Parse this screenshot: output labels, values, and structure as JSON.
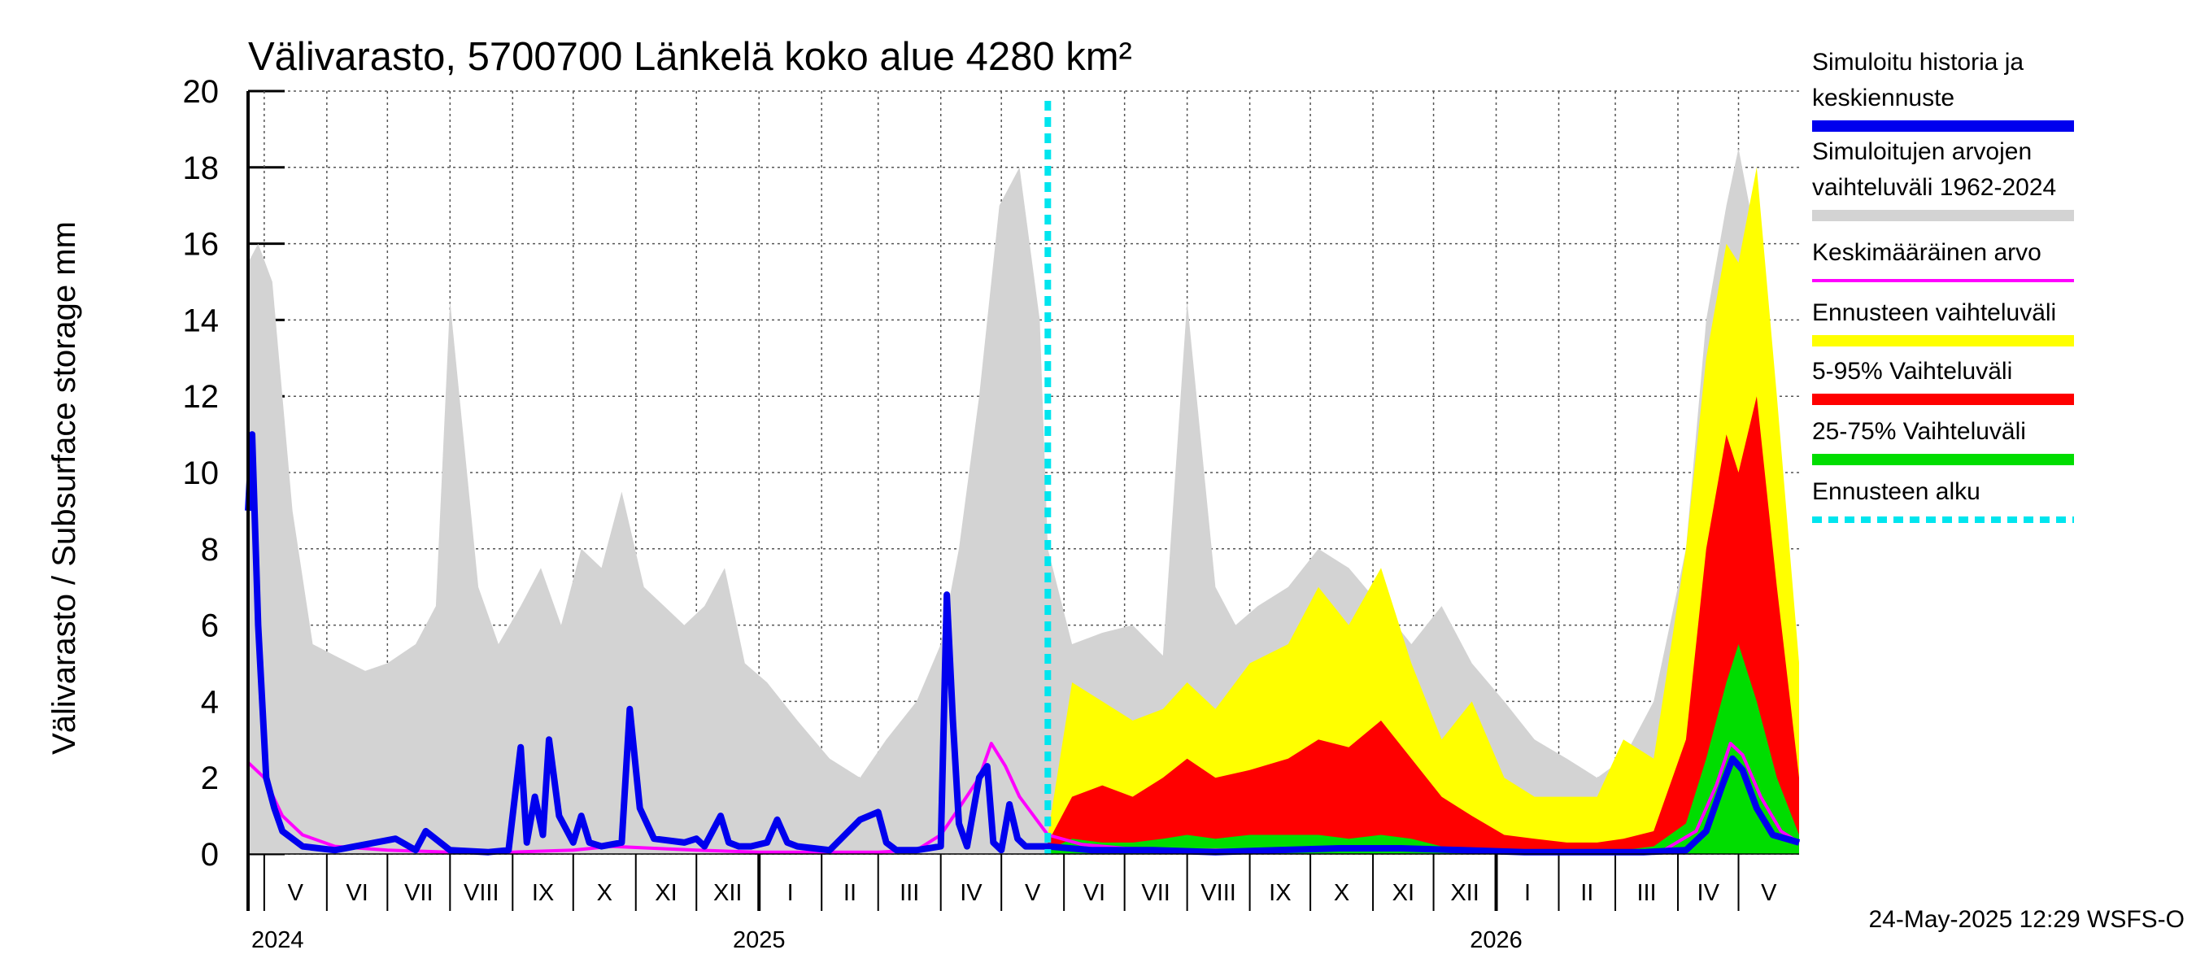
{
  "chart_data": {
    "type": "area",
    "title": "Välivarasto, 5700700 Länkelä koko alue 4280 km²",
    "ylabel": "Välivarasto / Subsurface storage  mm",
    "ylim": [
      0,
      20
    ],
    "yticks": [
      "0",
      "2",
      "4",
      "6",
      "8",
      "10",
      "12",
      "14",
      "16",
      "18",
      "20"
    ],
    "grid": true,
    "x_range": [
      "2024-04-23",
      "2026-05-31"
    ],
    "forecast_start": "2025-05-24",
    "months": [
      {
        "label": "V",
        "start": "2024-05-01"
      },
      {
        "label": "VI",
        "start": "2024-06-01"
      },
      {
        "label": "VII",
        "start": "2024-07-01"
      },
      {
        "label": "VIII",
        "start": "2024-08-01"
      },
      {
        "label": "IX",
        "start": "2024-09-01"
      },
      {
        "label": "X",
        "start": "2024-10-01"
      },
      {
        "label": "XI",
        "start": "2024-11-01"
      },
      {
        "label": "XII",
        "start": "2024-12-01"
      },
      {
        "label": "I",
        "start": "2025-01-01"
      },
      {
        "label": "II",
        "start": "2025-02-01"
      },
      {
        "label": "III",
        "start": "2025-03-01"
      },
      {
        "label": "IV",
        "start": "2025-04-01"
      },
      {
        "label": "V",
        "start": "2025-05-01"
      },
      {
        "label": "VI",
        "start": "2025-06-01"
      },
      {
        "label": "VII",
        "start": "2025-07-01"
      },
      {
        "label": "VIII",
        "start": "2025-08-01"
      },
      {
        "label": "IX",
        "start": "2025-09-01"
      },
      {
        "label": "X",
        "start": "2025-10-01"
      },
      {
        "label": "XI",
        "start": "2025-11-01"
      },
      {
        "label": "XII",
        "start": "2025-12-01"
      },
      {
        "label": "I",
        "start": "2026-01-01"
      },
      {
        "label": "II",
        "start": "2026-02-01"
      },
      {
        "label": "III",
        "start": "2026-03-01"
      },
      {
        "label": "IV",
        "start": "2026-04-01"
      },
      {
        "label": "V",
        "start": "2026-05-01"
      }
    ],
    "years": [
      {
        "label": "2024",
        "date": "2024-04-23"
      },
      {
        "label": "2025",
        "date": "2025-01-01"
      },
      {
        "label": "2026",
        "date": "2026-01-01"
      }
    ],
    "series": [
      {
        "name": "Simuloitujen arvojen vaihteluväli 1962-2024",
        "color": "#d3d3d3",
        "kind": "band",
        "x": [
          "2024-04-23",
          "2024-04-28",
          "2024-05-05",
          "2024-05-15",
          "2024-05-25",
          "2024-06-05",
          "2024-06-20",
          "2024-07-01",
          "2024-07-15",
          "2024-07-25",
          "2024-08-01",
          "2024-08-15",
          "2024-08-25",
          "2024-09-05",
          "2024-09-15",
          "2024-09-25",
          "2024-10-05",
          "2024-10-15",
          "2024-10-25",
          "2024-11-05",
          "2024-11-15",
          "2024-11-25",
          "2024-12-05",
          "2024-12-15",
          "2024-12-25",
          "2025-01-05",
          "2025-01-20",
          "2025-02-05",
          "2025-02-20",
          "2025-03-05",
          "2025-03-20",
          "2025-04-01",
          "2025-04-10",
          "2025-04-20",
          "2025-04-30",
          "2025-05-10",
          "2025-05-20",
          "2025-05-24",
          "2025-06-05",
          "2025-06-20",
          "2025-07-05",
          "2025-07-20",
          "2025-08-01",
          "2025-08-15",
          "2025-08-25",
          "2025-09-05",
          "2025-09-20",
          "2025-10-05",
          "2025-10-20",
          "2025-11-05",
          "2025-11-20",
          "2025-12-05",
          "2025-12-20",
          "2026-01-05",
          "2026-01-20",
          "2026-02-05",
          "2026-02-20",
          "2026-03-05",
          "2026-03-20",
          "2026-04-05",
          "2026-04-15",
          "2026-04-25",
          "2026-05-01",
          "2026-05-10",
          "2026-05-20",
          "2026-05-31"
        ],
        "values": [
          15.5,
          16.0,
          15.0,
          9.0,
          5.5,
          5.2,
          4.8,
          5.0,
          5.5,
          6.5,
          14.5,
          7.0,
          5.5,
          6.5,
          7.5,
          6.0,
          8.0,
          7.5,
          9.5,
          7.0,
          6.5,
          6.0,
          6.5,
          7.5,
          5.0,
          4.5,
          3.5,
          2.5,
          2.0,
          3.0,
          4.0,
          5.5,
          8.0,
          12.0,
          17.0,
          18.0,
          14.0,
          8.0,
          5.5,
          5.8,
          6.0,
          5.2,
          14.5,
          7.0,
          6.0,
          6.5,
          7.0,
          8.0,
          7.5,
          6.5,
          5.5,
          6.5,
          5.0,
          4.0,
          3.0,
          2.5,
          2.0,
          2.5,
          4.0,
          8.0,
          14.0,
          17.0,
          18.5,
          16.0,
          10.0,
          5.0
        ]
      },
      {
        "name": "Ennusteen vaihteluväli",
        "color": "#ffff00",
        "kind": "band",
        "x": [
          "2025-05-24",
          "2025-06-05",
          "2025-06-20",
          "2025-07-05",
          "2025-07-20",
          "2025-08-01",
          "2025-08-15",
          "2025-09-01",
          "2025-09-20",
          "2025-10-05",
          "2025-10-20",
          "2025-11-05",
          "2025-11-20",
          "2025-12-05",
          "2025-12-20",
          "2026-01-05",
          "2026-01-20",
          "2026-02-05",
          "2026-02-20",
          "2026-03-05",
          "2026-03-20",
          "2026-04-05",
          "2026-04-15",
          "2026-04-25",
          "2026-05-01",
          "2026-05-10",
          "2026-05-20",
          "2026-05-31"
        ],
        "values": [
          0.5,
          4.5,
          4.0,
          3.5,
          3.8,
          4.5,
          3.8,
          5.0,
          5.5,
          7.0,
          6.0,
          7.5,
          5.0,
          3.0,
          4.0,
          2.0,
          1.5,
          1.5,
          1.5,
          3.0,
          2.5,
          8.0,
          13.0,
          16.0,
          15.5,
          18.0,
          12.0,
          5.0
        ]
      },
      {
        "name": "5-95% Vaihteluväli",
        "color": "#ff0000",
        "kind": "band",
        "x": [
          "2025-05-24",
          "2025-06-05",
          "2025-06-20",
          "2025-07-05",
          "2025-07-20",
          "2025-08-01",
          "2025-08-15",
          "2025-09-01",
          "2025-09-20",
          "2025-10-05",
          "2025-10-20",
          "2025-11-05",
          "2025-11-20",
          "2025-12-05",
          "2025-12-20",
          "2026-01-05",
          "2026-01-20",
          "2026-02-05",
          "2026-02-20",
          "2026-03-05",
          "2026-03-20",
          "2026-04-05",
          "2026-04-15",
          "2026-04-25",
          "2026-05-01",
          "2026-05-10",
          "2026-05-20",
          "2026-05-31"
        ],
        "values": [
          0.3,
          1.5,
          1.8,
          1.5,
          2.0,
          2.5,
          2.0,
          2.2,
          2.5,
          3.0,
          2.8,
          3.5,
          2.5,
          1.5,
          1.0,
          0.5,
          0.4,
          0.3,
          0.3,
          0.4,
          0.6,
          3.0,
          8.0,
          11.0,
          10.0,
          12.0,
          7.0,
          2.0
        ]
      },
      {
        "name": "25-75% Vaihteluväli",
        "color": "#00dd00",
        "kind": "band",
        "x": [
          "2025-05-24",
          "2025-06-05",
          "2025-06-20",
          "2025-07-05",
          "2025-07-20",
          "2025-08-01",
          "2025-08-15",
          "2025-09-01",
          "2025-09-20",
          "2025-10-05",
          "2025-10-20",
          "2025-11-05",
          "2025-11-20",
          "2025-12-05",
          "2025-12-20",
          "2026-01-05",
          "2026-01-20",
          "2026-02-05",
          "2026-02-20",
          "2026-03-05",
          "2026-03-20",
          "2026-04-05",
          "2026-04-15",
          "2026-04-25",
          "2026-05-01",
          "2026-05-10",
          "2026-05-20",
          "2026-05-31"
        ],
        "values": [
          0.1,
          0.4,
          0.3,
          0.3,
          0.4,
          0.5,
          0.4,
          0.5,
          0.5,
          0.5,
          0.4,
          0.5,
          0.4,
          0.2,
          0.1,
          0.1,
          0.05,
          0.05,
          0.05,
          0.1,
          0.2,
          0.8,
          2.5,
          4.5,
          5.5,
          4.0,
          2.0,
          0.5
        ]
      },
      {
        "name": "Keskimääräinen arvo",
        "color": "#ff00ff",
        "kind": "line",
        "x": [
          "2024-04-23",
          "2024-05-01",
          "2024-05-10",
          "2024-05-20",
          "2024-06-05",
          "2024-07-01",
          "2024-08-01",
          "2024-09-01",
          "2024-10-01",
          "2024-10-20",
          "2024-11-10",
          "2024-12-01",
          "2025-01-01",
          "2025-02-01",
          "2025-03-01",
          "2025-03-20",
          "2025-04-01",
          "2025-04-10",
          "2025-04-20",
          "2025-04-26",
          "2025-05-03",
          "2025-05-10",
          "2025-05-24",
          "2025-06-10",
          "2025-07-01",
          "2025-08-01",
          "2025-09-01",
          "2025-10-01",
          "2025-11-01",
          "2025-12-01",
          "2026-01-01",
          "2026-02-01",
          "2026-03-01",
          "2026-03-25",
          "2026-04-10",
          "2026-04-20",
          "2026-04-27",
          "2026-05-03",
          "2026-05-12",
          "2026-05-22",
          "2026-05-31"
        ],
        "values": [
          2.4,
          2.0,
          1.0,
          0.5,
          0.2,
          0.1,
          0.05,
          0.05,
          0.1,
          0.2,
          0.15,
          0.1,
          0.05,
          0.05,
          0.05,
          0.1,
          0.5,
          1.2,
          2.0,
          2.9,
          2.3,
          1.5,
          0.5,
          0.25,
          0.15,
          0.1,
          0.1,
          0.15,
          0.15,
          0.1,
          0.05,
          0.05,
          0.05,
          0.1,
          0.6,
          1.8,
          2.9,
          2.6,
          1.5,
          0.6,
          0.3
        ]
      },
      {
        "name": "Simuloitu historia ja keskiennuste",
        "color": "#0000ee",
        "kind": "line",
        "x": [
          "2024-04-23",
          "2024-04-25",
          "2024-04-28",
          "2024-05-02",
          "2024-05-06",
          "2024-05-10",
          "2024-05-20",
          "2024-06-05",
          "2024-06-25",
          "2024-07-05",
          "2024-07-15",
          "2024-07-20",
          "2024-08-01",
          "2024-08-20",
          "2024-08-30",
          "2024-09-05",
          "2024-09-08",
          "2024-09-12",
          "2024-09-16",
          "2024-09-19",
          "2024-09-24",
          "2024-10-01",
          "2024-10-05",
          "2024-10-09",
          "2024-10-15",
          "2024-10-25",
          "2024-10-29",
          "2024-11-03",
          "2024-11-10",
          "2024-11-25",
          "2024-12-01",
          "2024-12-05",
          "2024-12-09",
          "2024-12-13",
          "2024-12-17",
          "2024-12-22",
          "2024-12-28",
          "2025-01-05",
          "2025-01-10",
          "2025-01-15",
          "2025-01-20",
          "2025-02-05",
          "2025-02-20",
          "2025-03-01",
          "2025-03-05",
          "2025-03-10",
          "2025-03-20",
          "2025-04-01",
          "2025-04-04",
          "2025-04-07",
          "2025-04-10",
          "2025-04-14",
          "2025-04-20",
          "2025-04-24",
          "2025-04-27",
          "2025-05-01",
          "2025-05-05",
          "2025-05-09",
          "2025-05-13",
          "2025-05-17",
          "2025-05-24",
          "2025-06-15",
          "2025-07-15",
          "2025-08-15",
          "2025-09-15",
          "2025-10-15",
          "2025-11-15",
          "2025-12-15",
          "2026-01-15",
          "2026-02-15",
          "2026-03-15",
          "2026-04-05",
          "2026-04-15",
          "2026-04-23",
          "2026-04-28",
          "2026-05-03",
          "2026-05-10",
          "2026-05-18",
          "2026-05-31"
        ],
        "values": [
          9.0,
          11.0,
          6.0,
          2.0,
          1.2,
          0.6,
          0.2,
          0.1,
          0.3,
          0.4,
          0.1,
          0.6,
          0.1,
          0.05,
          0.1,
          2.8,
          0.3,
          1.5,
          0.5,
          3.0,
          1.0,
          0.3,
          1.0,
          0.3,
          0.2,
          0.3,
          3.8,
          1.2,
          0.4,
          0.3,
          0.4,
          0.2,
          0.6,
          1.0,
          0.3,
          0.2,
          0.2,
          0.3,
          0.9,
          0.3,
          0.2,
          0.1,
          0.9,
          1.1,
          0.3,
          0.1,
          0.1,
          0.2,
          6.8,
          3.5,
          0.8,
          0.2,
          2.0,
          2.3,
          0.3,
          0.1,
          1.3,
          0.4,
          0.2,
          0.2,
          0.2,
          0.1,
          0.1,
          0.05,
          0.1,
          0.15,
          0.15,
          0.1,
          0.05,
          0.05,
          0.05,
          0.1,
          0.6,
          1.8,
          2.5,
          2.2,
          1.2,
          0.5,
          0.3
        ]
      },
      {
        "name": "Ennusteen alku",
        "color": "#00e5ee",
        "kind": "vline",
        "x": [
          "2025-05-24"
        ]
      }
    ],
    "legend": [
      {
        "label": "Simuloitu historia ja keskiennuste",
        "color": "#0000ee",
        "style": "solid"
      },
      {
        "label": "Simuloitujen arvojen vaihteluväli 1962-2024",
        "color": "#d3d3d3",
        "style": "solid"
      },
      {
        "label": "Keskimääräinen arvo",
        "color": "#ff00ff",
        "style": "thin"
      },
      {
        "label": "Ennusteen vaihteluväli",
        "color": "#ffff00",
        "style": "solid"
      },
      {
        "label": "5-95% Vaihteluväli",
        "color": "#ff0000",
        "style": "solid"
      },
      {
        "label": "25-75% Vaihteluväli",
        "color": "#00dd00",
        "style": "solid"
      },
      {
        "label": "Ennusteen alku",
        "color": "#00e5ee",
        "style": "dashed"
      }
    ],
    "legend_placement": "right",
    "footer": "24-May-2025 12:29 WSFS-O"
  }
}
